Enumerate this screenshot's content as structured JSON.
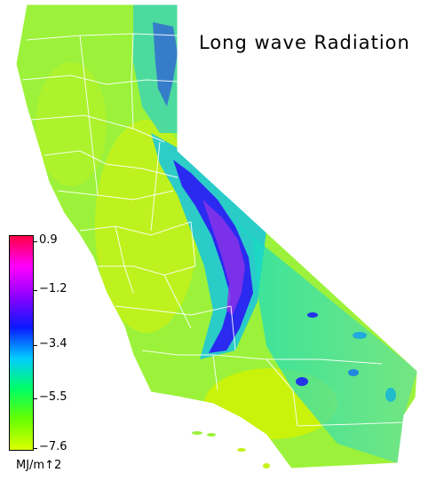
{
  "title": "Long wave Radiation",
  "legend": {
    "units": "MJ/m↑2",
    "ticks": [
      "0.9",
      "−1.2",
      "−3.4",
      "−5.5",
      "−7.6"
    ],
    "range": [
      -7.6,
      0.9
    ],
    "colors": [
      "#ff0044",
      "#ff00ff",
      "#8a00ff",
      "#0a1aff",
      "#00ccff",
      "#00ff66",
      "#66ff00",
      "#ddff00"
    ]
  },
  "map_colors": {
    "base_green": "#9cf23a",
    "lime": "#c8f000",
    "cyan": "#22d6c8",
    "blue": "#2222ee",
    "purple": "#7a33e8",
    "boundary": "#ffffff"
  }
}
